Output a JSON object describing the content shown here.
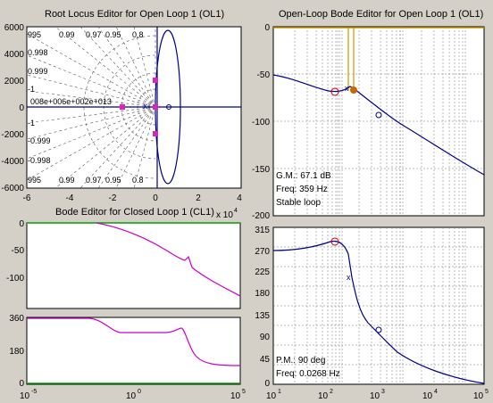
{
  "root_locus": {
    "title": "Root Locus Editor for Open Loop 1 (OL1)",
    "y_ticks": [
      "6000",
      "4000",
      "2000",
      "0",
      "-2000",
      "-4000",
      "-6000"
    ],
    "x_ticks": [
      "-6",
      "-4",
      "-2",
      "0",
      "2",
      "4"
    ],
    "x_exponent": "x 10",
    "x_exponent_power": "4",
    "damping_top": [
      "995",
      "0.99",
      "0.97",
      "0.95",
      "0.8"
    ],
    "damping_bottom": [
      "995",
      "0.99",
      "0.97",
      "0.95",
      "0.8"
    ],
    "damping_left": [
      "0.998",
      "0.999",
      "-1",
      "-1",
      "-0.999",
      "-0.998"
    ],
    "natural_freq_labels": "008e+006e+002e+013"
  },
  "cl_bode": {
    "title": "Bode Editor for Closed Loop 1 (CL1)",
    "mag_y_ticks": [
      "0",
      "-50",
      "-100"
    ],
    "phase_y_ticks": [
      "360",
      "180",
      "0"
    ],
    "x_ticks": [
      "10",
      "-5",
      "10",
      "0",
      "10",
      "5"
    ]
  },
  "ol_bode": {
    "title": "Open-Loop Bode Editor for Open Loop 1 (OL1)",
    "mag_y_ticks": [
      "0",
      "-50",
      "-100",
      "-150",
      "-200"
    ],
    "phase_y_ticks": [
      "315",
      "270",
      "225",
      "180",
      "135",
      "90",
      "45",
      "0"
    ],
    "x_ticks": [
      "10",
      "1",
      "10",
      "2",
      "10",
      "3",
      "10",
      "4",
      "10",
      "5"
    ],
    "gm_label": "G.M.: 67.1 dB",
    "gm_freq": "Freq: 359 Hz",
    "stability": "Stable loop",
    "pm_label": "P.M.: 90 deg",
    "pm_freq": "Freq: 0.0268 Hz"
  }
}
